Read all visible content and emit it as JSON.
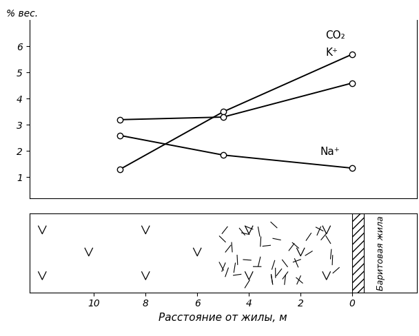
{
  "chart_data": {
    "type": "line",
    "y_label": "% вес.",
    "x_label": "Расстояние от жилы, м",
    "x": [
      9,
      5,
      0
    ],
    "xlim": [
      12.5,
      -2.5
    ],
    "xticks": [
      10,
      8,
      6,
      4,
      2,
      0
    ],
    "ylim": [
      0.2,
      7
    ],
    "yticks": [
      1,
      2,
      3,
      4,
      5,
      6
    ],
    "marker": "o",
    "color": "#000000",
    "annotations": [
      "Баритовая жила"
    ],
    "series": [
      {
        "name": "CO₂",
        "values": [
          1.3,
          3.5,
          5.7
        ]
      },
      {
        "name": "K⁺",
        "values": [
          3.2,
          3.3,
          4.6
        ]
      },
      {
        "name": "Na⁺",
        "values": [
          2.6,
          1.85,
          1.35
        ]
      }
    ]
  }
}
